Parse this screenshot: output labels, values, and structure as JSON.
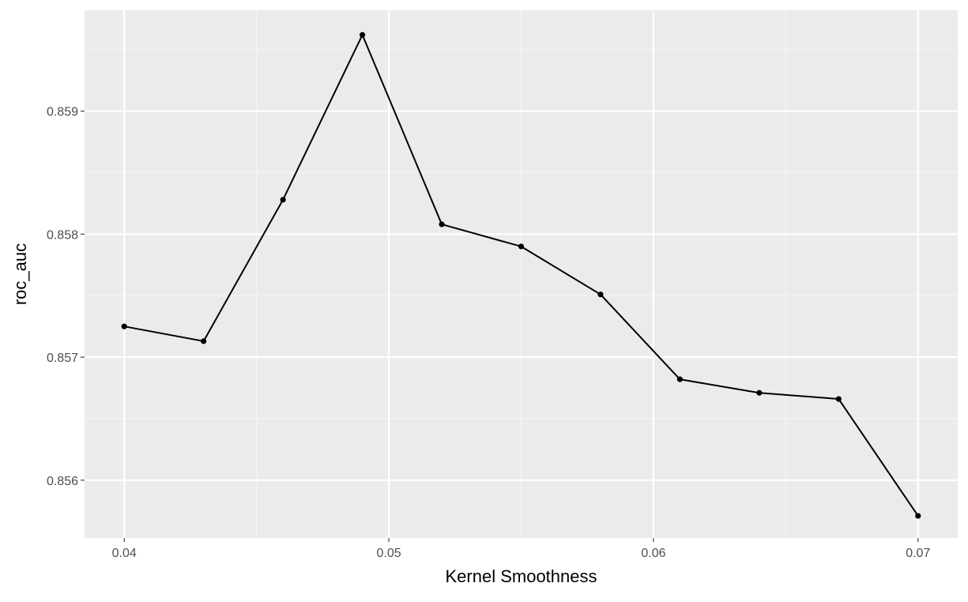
{
  "chart_data": {
    "type": "line",
    "title": "",
    "xlabel": "Kernel Smoothness",
    "ylabel": "roc_auc",
    "xlim": [
      0.0385,
      0.0715
    ],
    "ylim": [
      0.85553,
      0.85982
    ],
    "x_ticks": [
      0.04,
      0.05,
      0.06,
      0.07
    ],
    "x_tick_labels": [
      "0.04",
      "0.05",
      "0.06",
      "0.07"
    ],
    "y_ticks": [
      0.856,
      0.857,
      0.858,
      0.859
    ],
    "y_tick_labels": [
      "0.856",
      "0.857",
      "0.858",
      "0.859"
    ],
    "grid": true,
    "legend": "none",
    "series": [
      {
        "x": [
          0.04,
          0.043,
          0.046,
          0.049,
          0.052,
          0.055,
          0.058,
          0.061,
          0.064,
          0.067,
          0.07
        ],
        "y": [
          0.85725,
          0.85713,
          0.85828,
          0.85962,
          0.85808,
          0.8579,
          0.85751,
          0.85682,
          0.85671,
          0.85666,
          0.85571
        ]
      }
    ],
    "colors": {
      "panel_background": "#ebebeb",
      "grid_major": "#ffffff",
      "grid_minor": "#f5f5f5",
      "line": "#000000",
      "point": "#000000",
      "tick_label": "#4d4d4d",
      "axis_title": "#000000"
    }
  }
}
